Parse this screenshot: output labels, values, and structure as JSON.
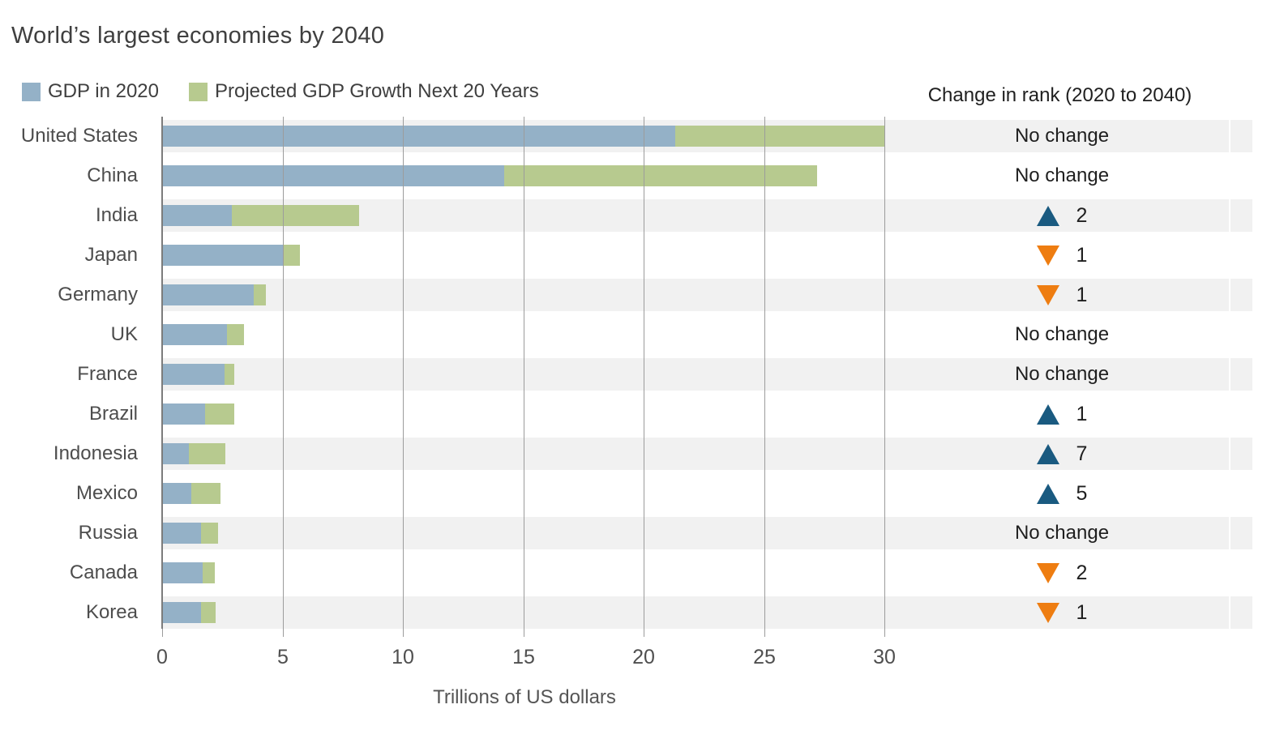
{
  "title": "World’s largest economies by 2040",
  "legend": [
    {
      "label": "GDP in 2020",
      "color": "#94b1c7"
    },
    {
      "label": "Projected GDP Growth Next 20 Years",
      "color": "#b7ca8f"
    }
  ],
  "rank_header": "Change in rank (2020 to 2040)",
  "chart_data": {
    "type": "bar",
    "orientation": "horizontal",
    "stacked": true,
    "title": "World’s largest economies by 2040",
    "xlabel": "Trillions of US dollars",
    "xlim": [
      0,
      30
    ],
    "xticks": [
      0,
      5,
      10,
      15,
      20,
      25,
      30
    ],
    "grid": "vertical",
    "legend_position": "top-left",
    "categories": [
      "United States",
      "China",
      "India",
      "Japan",
      "Germany",
      "UK",
      "France",
      "Brazil",
      "Indonesia",
      "Mexico",
      "Russia",
      "Canada",
      "Korea"
    ],
    "series": [
      {
        "name": "GDP in 2020",
        "color": "#94b1c7",
        "values": [
          21.3,
          14.2,
          2.9,
          5.0,
          3.8,
          2.7,
          2.6,
          1.8,
          1.1,
          1.2,
          1.6,
          1.7,
          1.6
        ]
      },
      {
        "name": "Projected GDP Growth Next 20 Years",
        "color": "#b7ca8f",
        "values": [
          8.7,
          13.0,
          5.3,
          0.7,
          0.5,
          0.7,
          0.4,
          1.2,
          1.5,
          1.2,
          0.7,
          0.5,
          0.6
        ]
      }
    ],
    "rank_changes": [
      {
        "change": "none",
        "label": "No change"
      },
      {
        "change": "none",
        "label": "No change"
      },
      {
        "change": "up",
        "places": 2
      },
      {
        "change": "down",
        "places": 1
      },
      {
        "change": "down",
        "places": 1
      },
      {
        "change": "none",
        "label": "No change"
      },
      {
        "change": "none",
        "label": "No change"
      },
      {
        "change": "up",
        "places": 1
      },
      {
        "change": "up",
        "places": 7
      },
      {
        "change": "up",
        "places": 5
      },
      {
        "change": "none",
        "label": "No change"
      },
      {
        "change": "down",
        "places": 2
      },
      {
        "change": "down",
        "places": 1
      }
    ],
    "colors": {
      "up_triangle": "#1a5a80",
      "down_triangle": "#ee7d11",
      "row_band": "#f1f1f1",
      "gridline": "#9c9c9c",
      "axis_line": "#7c7c7c"
    }
  }
}
